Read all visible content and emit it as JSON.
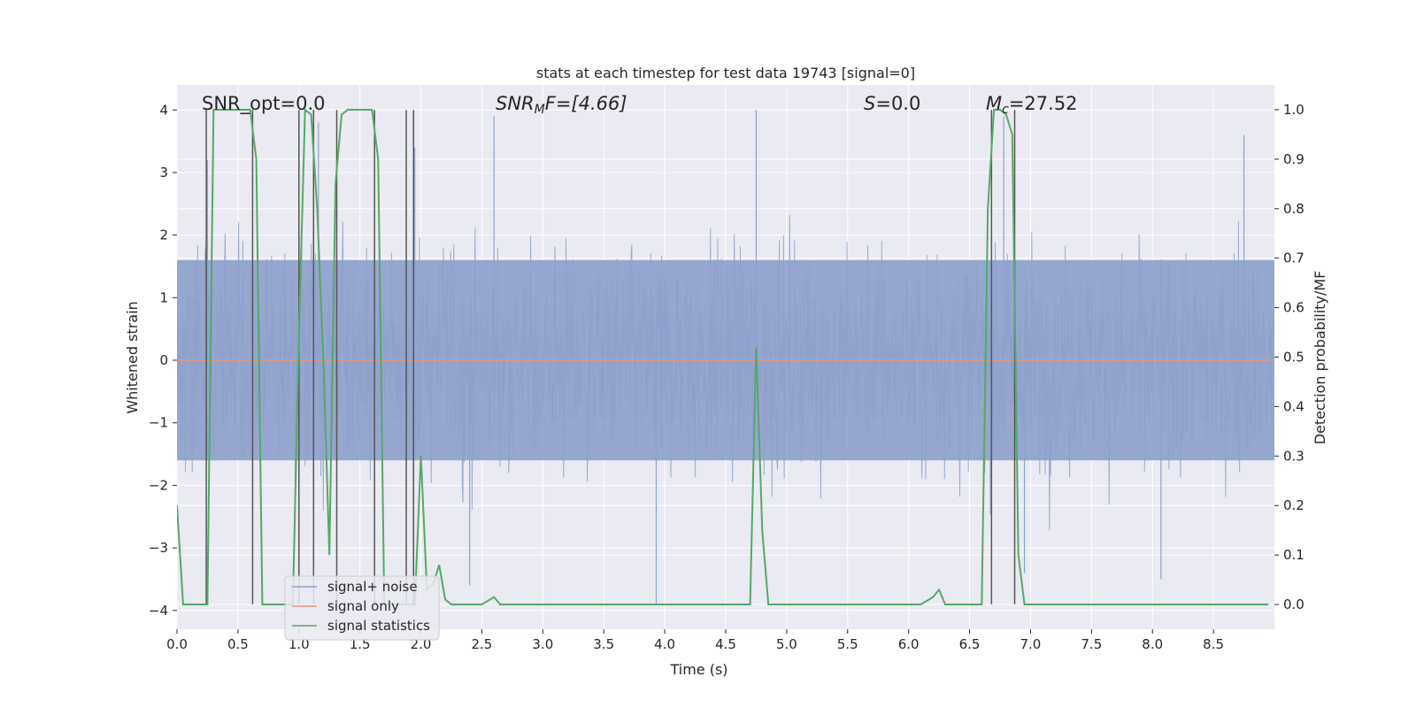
{
  "chart_data": {
    "type": "line",
    "title": "stats at each timestep for test data 19743 [signal=0]",
    "xlabel": "Time (s)",
    "ylabel": "Whitened strain",
    "ylabel_right": "Detection probability/MF",
    "xlim": [
      0.0,
      9.0
    ],
    "ylim": [
      -4.3,
      4.4
    ],
    "ylim_right": [
      -0.05,
      1.05
    ],
    "xticks": [
      0.0,
      0.5,
      1.0,
      1.5,
      2.0,
      2.5,
      3.0,
      3.5,
      4.0,
      4.5,
      5.0,
      5.5,
      6.0,
      6.5,
      7.0,
      7.5,
      8.0,
      8.5
    ],
    "xtick_labels": [
      "0.0",
      "0.5",
      "1.0",
      "1.5",
      "2.0",
      "2.5",
      "3.0",
      "3.5",
      "4.0",
      "4.5",
      "5.0",
      "5.5",
      "6.0",
      "6.5",
      "7.0",
      "7.5",
      "8.0",
      "8.5"
    ],
    "yticks": [
      -4,
      -3,
      -2,
      -1,
      0,
      1,
      2,
      3,
      4
    ],
    "ytick_labels": [
      "−4",
      "−3",
      "−2",
      "−1",
      "0",
      "1",
      "2",
      "3",
      "4"
    ],
    "yticks_right": [
      0.0,
      0.1,
      0.2,
      0.3,
      0.4,
      0.5,
      0.6,
      0.7,
      0.8,
      0.9,
      1.0
    ],
    "ytick_labels_right": [
      "0.0",
      "0.1",
      "0.2",
      "0.3",
      "0.4",
      "0.5",
      "0.6",
      "0.7",
      "0.8",
      "0.9",
      "1.0"
    ],
    "annotations": {
      "snr_opt": "SNR_opt=0.0",
      "snr_mf": "SNR",
      "snr_mf_sub": "M",
      "snr_mf_rest": "F=[4.66]",
      "s_var": "S",
      "s_value": "=0.0",
      "mc_var": "M",
      "mc_sub": "c",
      "mc_value": "=27.52"
    },
    "legend": {
      "position": "lower-left",
      "entries": [
        "signal+ noise",
        "signal only",
        "signal statistics"
      ]
    },
    "colors": {
      "noise": "#8da0cb",
      "signal": "#e8967a",
      "stats": "#55a868",
      "vlines": "#555555",
      "background": "#eaeaf2",
      "grid": "#ffffff"
    },
    "series": [
      {
        "name": "signal+ noise",
        "description_values": "whitened strain noise, roughly within -3.9 to 4.0",
        "envelope_spikes": [
          {
            "t": 0.25,
            "v": 3.2
          },
          {
            "t": 1.0,
            "v": 3.6
          },
          {
            "t": 1.16,
            "v": 3.8
          },
          {
            "t": 1.95,
            "v": 3.4
          },
          {
            "t": 2.6,
            "v": 3.9
          },
          {
            "t": 4.75,
            "v": 4.0
          },
          {
            "t": 6.78,
            "v": 3.9
          },
          {
            "t": 8.75,
            "v": 3.6
          },
          {
            "t": 3.93,
            "v": -3.9
          },
          {
            "t": 2.4,
            "v": -3.6
          },
          {
            "t": 8.07,
            "v": -3.5
          },
          {
            "t": 6.95,
            "v": -3.4
          }
        ]
      },
      {
        "name": "signal only",
        "x": [
          0.0,
          9.0
        ],
        "y": [
          0.0,
          0.0
        ]
      },
      {
        "name": "signal statistics",
        "axis": "right",
        "x": [
          0.0,
          0.05,
          0.2,
          0.25,
          0.3,
          0.6,
          0.65,
          0.7,
          0.95,
          1.0,
          1.05,
          1.1,
          1.15,
          1.2,
          1.25,
          1.3,
          1.35,
          1.4,
          1.6,
          1.65,
          1.7,
          1.95,
          2.0,
          2.05,
          2.1,
          2.15,
          2.2,
          2.25,
          2.5,
          2.6,
          2.65,
          2.7,
          4.7,
          4.75,
          4.8,
          4.85,
          4.9,
          6.1,
          6.2,
          6.25,
          6.3,
          6.4,
          6.6,
          6.65,
          6.7,
          6.75,
          6.8,
          6.85,
          6.9,
          6.95,
          7.0,
          8.95
        ],
        "y": [
          0.2,
          0.0,
          0.0,
          0.0,
          1.0,
          1.0,
          0.9,
          0.0,
          0.0,
          0.55,
          1.0,
          0.99,
          0.8,
          0.5,
          0.1,
          0.85,
          0.99,
          1.0,
          1.0,
          0.9,
          0.0,
          0.0,
          0.3,
          0.03,
          0.04,
          0.08,
          0.01,
          0.0,
          0.0,
          0.015,
          0.0,
          0.0,
          0.0,
          0.52,
          0.15,
          0.0,
          0.0,
          0.0,
          0.015,
          0.03,
          0.0,
          0.0,
          0.0,
          0.8,
          1.0,
          1.0,
          0.99,
          0.95,
          0.1,
          0.0,
          0.0,
          0.0
        ]
      }
    ],
    "vertical_lines_t": [
      0.24,
      0.62,
      1.0,
      1.12,
      1.31,
      1.62,
      1.88,
      1.94,
      6.68,
      6.87
    ]
  }
}
